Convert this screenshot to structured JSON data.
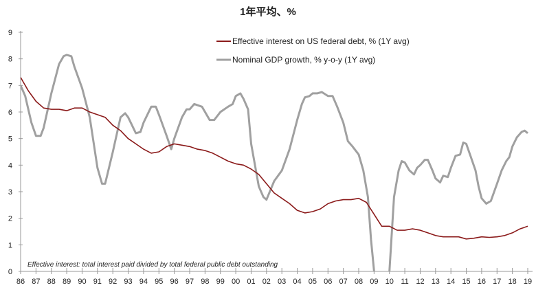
{
  "chart_data": {
    "type": "line",
    "title": "1年平均、%",
    "xlabel": "",
    "ylabel": "",
    "ylim": [
      0,
      9
    ],
    "xlim": [
      1986,
      2019.2
    ],
    "yticks": [
      "0",
      "1",
      "2",
      "3",
      "4",
      "5",
      "6",
      "7",
      "8",
      "9"
    ],
    "xtick_labels": [
      "86",
      "87",
      "88",
      "89",
      "90",
      "91",
      "92",
      "93",
      "94",
      "95",
      "96",
      "97",
      "98",
      "99",
      "00",
      "01",
      "02",
      "03",
      "04",
      "05",
      "06",
      "07",
      "08",
      "09",
      "10",
      "11",
      "12",
      "13",
      "14",
      "15",
      "16",
      "17",
      "18",
      "19"
    ],
    "legend_position": "top-center",
    "annotation": "Effective interest: total interest paid divided by total federal public debt outstanding",
    "series": [
      {
        "name": "Effective interest on US federal debt, % (1Y avg)",
        "color": "#8b1a1a",
        "x": [
          1986,
          1986.5,
          1987,
          1987.5,
          1988,
          1988.5,
          1989,
          1989.5,
          1990,
          1990.5,
          1991,
          1991.5,
          1992,
          1992.5,
          1993,
          1993.5,
          1994,
          1994.5,
          1995,
          1995.5,
          1996,
          1996.5,
          1997,
          1997.5,
          1998,
          1998.5,
          1999,
          1999.5,
          2000,
          2000.5,
          2001,
          2001.5,
          2002,
          2002.5,
          2003,
          2003.5,
          2004,
          2004.5,
          2005,
          2005.5,
          2006,
          2006.5,
          2007,
          2007.5,
          2008,
          2008.5,
          2009,
          2009.5,
          2010,
          2010.5,
          2011,
          2011.5,
          2012,
          2012.5,
          2013,
          2013.5,
          2014,
          2014.5,
          2015,
          2015.5,
          2016,
          2016.5,
          2017,
          2017.5,
          2018,
          2018.5,
          2019
        ],
        "y": [
          7.3,
          6.8,
          6.4,
          6.15,
          6.1,
          6.1,
          6.05,
          6.15,
          6.15,
          6.0,
          5.9,
          5.8,
          5.5,
          5.3,
          5.0,
          4.8,
          4.6,
          4.45,
          4.5,
          4.7,
          4.8,
          4.75,
          4.7,
          4.6,
          4.55,
          4.45,
          4.3,
          4.15,
          4.05,
          4.0,
          3.85,
          3.65,
          3.3,
          2.95,
          2.75,
          2.55,
          2.3,
          2.2,
          2.25,
          2.35,
          2.55,
          2.65,
          2.7,
          2.7,
          2.75,
          2.6,
          2.15,
          1.7,
          1.7,
          1.55,
          1.55,
          1.6,
          1.55,
          1.45,
          1.35,
          1.3,
          1.3,
          1.3,
          1.22,
          1.25,
          1.3,
          1.28,
          1.3,
          1.35,
          1.45,
          1.6,
          1.7
        ]
      },
      {
        "name": "Nominal GDP growth, % y-o-y (1Y avg)",
        "color": "#a0a0a0",
        "x": [
          1986,
          1986.3,
          1986.7,
          1987,
          1987.3,
          1987.5,
          1988,
          1988.5,
          1988.8,
          1989,
          1989.3,
          1989.5,
          1990,
          1990.5,
          1991,
          1991.3,
          1991.5,
          1992,
          1992.5,
          1992.8,
          1993,
          1993.5,
          1993.8,
          1994,
          1994.5,
          1994.8,
          1995,
          1995.5,
          1995.8,
          1996,
          1996.5,
          1996.8,
          1997,
          1997.3,
          1997.8,
          1998,
          1998.3,
          1998.6,
          1999,
          1999.5,
          1999.8,
          2000,
          2000.3,
          2000.5,
          2000.8,
          2001,
          2001.5,
          2001.8,
          2002,
          2002.5,
          2003,
          2003.5,
          2004,
          2004.3,
          2004.5,
          2004.8,
          2005,
          2005.3,
          2005.6,
          2006,
          2006.3,
          2006.6,
          2007,
          2007.3,
          2007.6,
          2008,
          2008.3,
          2008.6,
          2008.8,
          2009,
          2009.5,
          2010,
          2010.3,
          2010.6,
          2010.8,
          2011,
          2011.3,
          2011.6,
          2011.8,
          2012,
          2012.3,
          2012.5,
          2012.8,
          2013,
          2013.3,
          2013.5,
          2013.8,
          2014,
          2014.3,
          2014.6,
          2014.8,
          2015,
          2015.3,
          2015.6,
          2015.8,
          2016,
          2016.3,
          2016.6,
          2017,
          2017.3,
          2017.6,
          2017.8,
          2018,
          2018.3,
          2018.6,
          2018.8,
          2019
        ],
        "y": [
          7.0,
          6.6,
          5.6,
          5.1,
          5.1,
          5.4,
          6.7,
          7.8,
          8.1,
          8.15,
          8.1,
          7.7,
          6.9,
          5.8,
          3.9,
          3.3,
          3.3,
          4.5,
          5.8,
          5.95,
          5.8,
          5.2,
          5.25,
          5.6,
          6.2,
          6.2,
          5.9,
          5.1,
          4.6,
          5.0,
          5.8,
          6.1,
          6.1,
          6.3,
          6.2,
          6.0,
          5.7,
          5.7,
          6.0,
          6.2,
          6.3,
          6.6,
          6.7,
          6.5,
          6.1,
          4.8,
          3.2,
          2.8,
          2.7,
          3.4,
          3.8,
          4.6,
          5.7,
          6.3,
          6.55,
          6.6,
          6.7,
          6.7,
          6.75,
          6.6,
          6.6,
          6.2,
          5.6,
          4.9,
          4.7,
          4.4,
          3.8,
          2.8,
          1.2,
          0,
          -1,
          0,
          2.8,
          3.8,
          4.15,
          4.1,
          3.8,
          3.65,
          3.9,
          4.0,
          4.2,
          4.2,
          3.8,
          3.5,
          3.35,
          3.6,
          3.55,
          3.9,
          4.35,
          4.4,
          4.85,
          4.8,
          4.3,
          3.8,
          3.2,
          2.75,
          2.55,
          2.65,
          3.3,
          3.8,
          4.15,
          4.3,
          4.7,
          5.05,
          5.25,
          5.3,
          5.2
        ]
      }
    ]
  }
}
